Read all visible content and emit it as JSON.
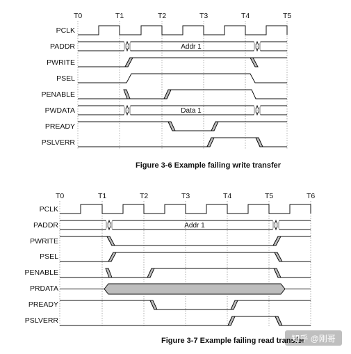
{
  "diagram_top": {
    "caption": "Figure 3-6 Example failing write transfer",
    "time_labels": [
      "T0",
      "T1",
      "T2",
      "T3",
      "T4",
      "T5"
    ],
    "signals": [
      "PCLK",
      "PADDR",
      "PWRITE",
      "PSEL",
      "PENABLE",
      "PWDATA",
      "PREADY",
      "PSLVERR"
    ],
    "addr_label": "Addr 1",
    "data_label": "Data 1"
  },
  "diagram_bottom": {
    "caption": "Figure 3-7 Example failing read transfer",
    "time_labels": [
      "T0",
      "T1",
      "T2",
      "T3",
      "T4",
      "T5",
      "T6"
    ],
    "signals": [
      "PCLK",
      "PADDR",
      "PWRITE",
      "PSEL",
      "PENABLE",
      "PRDATA",
      "PREADY",
      "PSLVERR"
    ],
    "addr_label": "Addr 1"
  },
  "watermark": "知乎 @刚哥"
}
